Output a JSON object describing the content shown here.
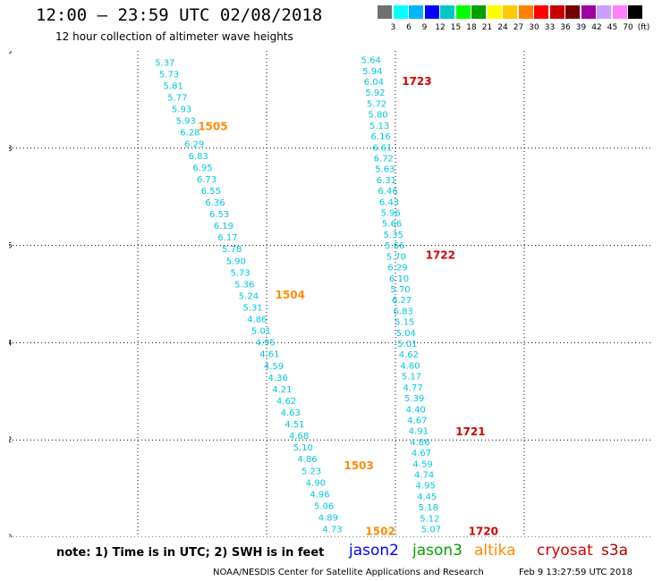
{
  "header": {
    "title": "12:00 — 23:59 UTC 02/08/2018",
    "subtitle": "12 hour collection of altimeter wave heights"
  },
  "color_scale": {
    "swatches": [
      "#707070",
      "#00ffff",
      "#00b4ff",
      "#0000ff",
      "#00c8c8",
      "#00ff00",
      "#00a000",
      "#ffff00",
      "#ffc800",
      "#ff8000",
      "#ff0000",
      "#c80000",
      "#780000",
      "#a000a0",
      "#c8a0ff",
      "#ff80ff",
      "#000000"
    ],
    "labels": [
      "3",
      "6",
      "9",
      "12",
      "15",
      "18",
      "21",
      "24",
      "27",
      "30",
      "33",
      "36",
      "39",
      "42",
      "45",
      "70"
    ],
    "unit": "(ft)"
  },
  "map": {
    "lon_range": [
      -150,
      -135
    ],
    "lat_range": [
      40,
      50
    ],
    "x_ticks": [
      "-150",
      "-147",
      "-144",
      "-141",
      "-138",
      "-135"
    ],
    "x_tick_values": [
      -150,
      -147,
      -144,
      -141,
      -138,
      -135
    ],
    "y_ticks": [
      "50",
      "48",
      "46",
      "44",
      "42",
      "40"
    ],
    "y_tick_values": [
      50,
      48,
      46,
      44,
      42,
      40
    ],
    "tracks": [
      {
        "satellite": "jason3",
        "color": "#00c8dc",
        "values": [
          "5.37",
          "5.73",
          "5.81",
          "5.77",
          "5.93",
          "5.93",
          "6.28",
          "6.29",
          "6.83",
          "6.95",
          "6.73",
          "6.55",
          "6.36",
          "6.53",
          "6.19",
          "6.17",
          "5.78",
          "5.90",
          "5.73",
          "5.36",
          "5.24",
          "5.31",
          "4.86",
          "5.01",
          "4.95",
          "4.61",
          "4.59",
          "4.36",
          "4.21",
          "4.62",
          "4.63",
          "4.51",
          "4.68",
          "5.10",
          "4.86",
          "5.23",
          "4.90",
          "4.96",
          "5.06",
          "4.89",
          "4.73"
        ],
        "start": [
          -146.6,
          49.7
        ],
        "end": [
          -142.7,
          40.1
        ]
      },
      {
        "satellite": "jason3",
        "color": "#00c8dc",
        "values": [
          "5.64",
          "5.94",
          "6.04",
          "5.92",
          "5.72",
          "5.80",
          "5.13",
          "6.16",
          "6.61",
          "6.72",
          "5.63",
          "6.31",
          "6.46",
          "6.43",
          "5.96",
          "5.66",
          "5.35",
          "5.66",
          "5.70",
          "6.29",
          "6.10",
          "5.70",
          "6.27",
          "6.83",
          "5.15",
          "5.04",
          "5.01",
          "4.62",
          "4.80",
          "5.17",
          "4.77",
          "5.39",
          "4.40",
          "4.67",
          "4.91",
          "4.86",
          "4.67",
          "4.59",
          "4.74",
          "4.95",
          "4.45",
          "5.18",
          "5.12",
          "5.07"
        ],
        "start": [
          -141.8,
          49.75
        ],
        "end": [
          -140.4,
          40.1
        ]
      }
    ],
    "time_labels": [
      {
        "text": "1505",
        "color": "#ff8c00",
        "lon": -145.6,
        "lat": 48.37
      },
      {
        "text": "1504",
        "color": "#ff8c00",
        "lon": -143.8,
        "lat": 44.91
      },
      {
        "text": "1503",
        "color": "#ff8c00",
        "lon": -142.2,
        "lat": 41.4
      },
      {
        "text": "1502",
        "color": "#ff8c00",
        "lon": -141.7,
        "lat": 40.05
      },
      {
        "text": "1723",
        "color": "#d20000",
        "lon": -140.85,
        "lat": 49.3
      },
      {
        "text": "1722",
        "color": "#d20000",
        "lon": -140.3,
        "lat": 45.73
      },
      {
        "text": "1721",
        "color": "#d20000",
        "lon": -139.6,
        "lat": 42.1
      },
      {
        "text": "1720",
        "color": "#d20000",
        "lon": -139.3,
        "lat": 40.05
      }
    ]
  },
  "footer": {
    "note": "note: 1) Time is in UTC; 2) SWH is in feet",
    "legend": [
      {
        "name": "jason2",
        "color": "#0000ff"
      },
      {
        "name": "jason3",
        "color": "#00a000"
      },
      {
        "name": "altika",
        "color": "#ff8c00"
      },
      {
        "name": "cryosat",
        "color": "#d20000"
      },
      {
        "name": "s3a",
        "color": "#b40000"
      }
    ],
    "credit": "NOAA/NESDIS Center for Satellite Applications and Research",
    "timestamp": "Feb  9 13:27:59 UTC 2018"
  }
}
